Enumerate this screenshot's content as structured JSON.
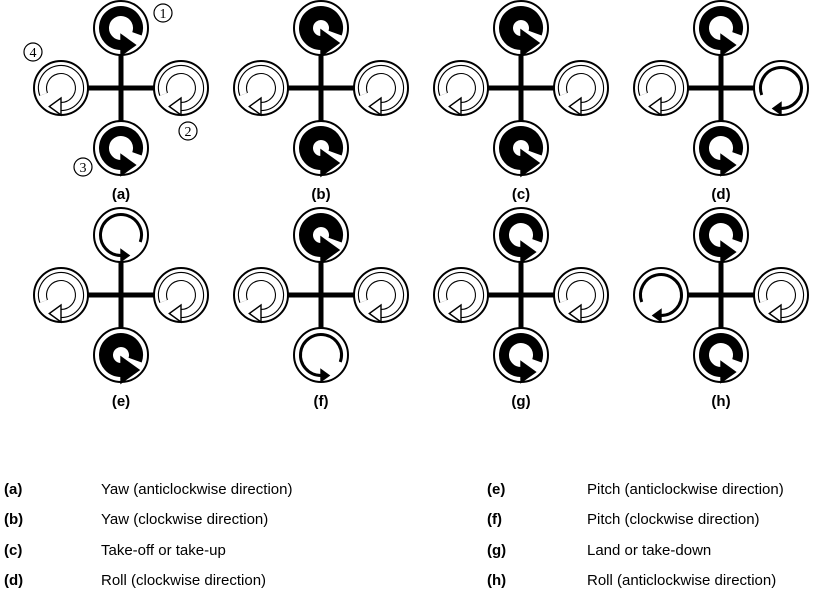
{
  "rotor_numbers": [
    "1",
    "2",
    "3",
    "4"
  ],
  "panels": [
    {
      "key": "(a)",
      "rotors": {
        "top": {
          "dir": "ccw",
          "weight": "medium"
        },
        "right": {
          "dir": "cw",
          "weight": "thin"
        },
        "bottom": {
          "dir": "ccw",
          "weight": "medium"
        },
        "left": {
          "dir": "cw",
          "weight": "thin"
        }
      }
    },
    {
      "key": "(b)",
      "rotors": {
        "top": {
          "dir": "ccw",
          "weight": "thick"
        },
        "right": {
          "dir": "cw",
          "weight": "thin"
        },
        "bottom": {
          "dir": "ccw",
          "weight": "thick"
        },
        "left": {
          "dir": "cw",
          "weight": "thin"
        }
      }
    },
    {
      "key": "(c)",
      "rotors": {
        "top": {
          "dir": "ccw",
          "weight": "thick"
        },
        "right": {
          "dir": "cw",
          "weight": "thin"
        },
        "bottom": {
          "dir": "ccw",
          "weight": "thick"
        },
        "left": {
          "dir": "cw",
          "weight": "thin"
        }
      }
    },
    {
      "key": "(d)",
      "rotors": {
        "top": {
          "dir": "ccw",
          "weight": "medium"
        },
        "right": {
          "dir": "cw",
          "weight": "hair"
        },
        "bottom": {
          "dir": "ccw",
          "weight": "medium"
        },
        "left": {
          "dir": "cw",
          "weight": "thin"
        }
      }
    },
    {
      "key": "(e)",
      "rotors": {
        "top": {
          "dir": "ccw",
          "weight": "hair"
        },
        "right": {
          "dir": "cw",
          "weight": "thin"
        },
        "bottom": {
          "dir": "ccw",
          "weight": "thick"
        },
        "left": {
          "dir": "cw",
          "weight": "thin"
        }
      }
    },
    {
      "key": "(f)",
      "rotors": {
        "top": {
          "dir": "ccw",
          "weight": "thick"
        },
        "right": {
          "dir": "cw",
          "weight": "thin"
        },
        "bottom": {
          "dir": "ccw",
          "weight": "hair"
        },
        "left": {
          "dir": "cw",
          "weight": "thin"
        }
      }
    },
    {
      "key": "(g)",
      "rotors": {
        "top": {
          "dir": "ccw",
          "weight": "medium"
        },
        "right": {
          "dir": "cw",
          "weight": "thin"
        },
        "bottom": {
          "dir": "ccw",
          "weight": "medium"
        },
        "left": {
          "dir": "cw",
          "weight": "thin"
        }
      }
    },
    {
      "key": "(h)",
      "rotors": {
        "top": {
          "dir": "ccw",
          "weight": "medium"
        },
        "right": {
          "dir": "cw",
          "weight": "thin"
        },
        "bottom": {
          "dir": "ccw",
          "weight": "medium"
        },
        "left": {
          "dir": "cw",
          "weight": "hair"
        }
      }
    }
  ],
  "legend": {
    "left": [
      {
        "key": "(a)",
        "desc": "Yaw (anticlockwise direction)"
      },
      {
        "key": "(b)",
        "desc": "Yaw (clockwise direction)"
      },
      {
        "key": "(c)",
        "desc": "Take-off or take-up"
      },
      {
        "key": "(d)",
        "desc": "Roll (clockwise direction)"
      }
    ],
    "right": [
      {
        "key": "(e)",
        "desc": "Pitch (anticlockwise direction)"
      },
      {
        "key": "(f)",
        "desc": "Pitch (clockwise direction)"
      },
      {
        "key": "(g)",
        "desc": "Land or take-down"
      },
      {
        "key": "(h)",
        "desc": "Roll (anticlockwise direction)"
      }
    ]
  }
}
